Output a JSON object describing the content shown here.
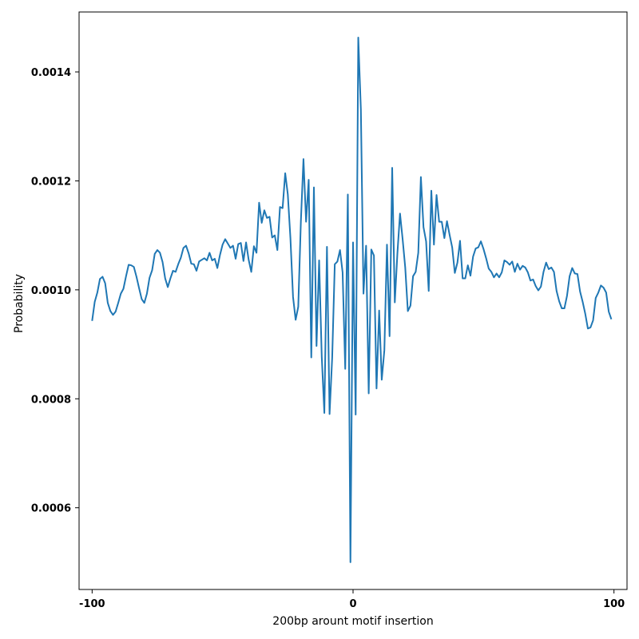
{
  "chart_data": {
    "type": "line",
    "title": "",
    "xlabel": "200bp arount motif insertion",
    "ylabel": "Probability",
    "xlim": [
      -105,
      105
    ],
    "ylim": [
      0.00045,
      0.00151
    ],
    "xticks": [
      -100,
      0,
      100
    ],
    "xtick_labels": [
      "-100",
      "0",
      "100"
    ],
    "yticks": [
      0.0006,
      0.0008,
      0.001,
      0.0012,
      0.0014
    ],
    "ytick_labels": [
      "0.0006",
      "0.0008",
      "0.0010",
      "0.0012",
      "0.0014"
    ],
    "grid": false,
    "legend": false,
    "color": "#1f77b4",
    "series": [
      {
        "x": [
          -100,
          -99,
          -98,
          -97,
          -96,
          -95,
          -94,
          -93,
          -92,
          -91,
          -90,
          -89,
          -88,
          -87,
          -86,
          -85,
          -84,
          -83,
          -82,
          -81,
          -80,
          -79,
          -78,
          -77,
          -76,
          -75,
          -74,
          -73,
          -72,
          -71,
          -70,
          -69,
          -68,
          -67,
          -66,
          -65,
          -64,
          -63,
          -62,
          -61,
          -60,
          -59,
          -58,
          -57,
          -56,
          -55,
          -54,
          -53,
          -52,
          -51,
          -50,
          -49,
          -48,
          -47,
          -46,
          -45,
          -44,
          -43,
          -42,
          -41,
          -40,
          -39,
          -38,
          -37,
          -36,
          -35,
          -34,
          -33,
          -32,
          -31,
          -30,
          -29,
          -28,
          -27,
          -26,
          -25,
          -24,
          -23,
          -22,
          -21,
          -20,
          -19,
          -18,
          -17,
          -16,
          -15,
          -14,
          -13,
          -12,
          -11,
          -10,
          -9,
          -8,
          -7,
          -6,
          -5,
          -4,
          -3,
          -2,
          -1,
          0,
          1,
          2,
          3,
          4,
          5,
          6,
          7,
          8,
          9,
          10,
          11,
          12,
          13,
          14,
          15,
          16,
          17,
          18,
          19,
          20,
          21,
          22,
          23,
          24,
          25,
          26,
          27,
          28,
          29,
          30,
          31,
          32,
          33,
          34,
          35,
          36,
          37,
          38,
          39,
          40,
          41,
          42,
          43,
          44,
          45,
          46,
          47,
          48,
          49,
          50,
          51,
          52,
          53,
          54,
          55,
          56,
          57,
          58,
          59,
          60,
          61,
          62,
          63,
          64,
          65,
          66,
          67,
          68,
          69,
          70,
          71,
          72,
          73,
          74,
          75,
          76,
          77,
          78,
          79,
          80,
          81,
          82,
          83,
          84,
          85,
          86,
          87,
          88,
          89,
          90,
          91,
          92,
          93,
          94,
          95,
          96,
          97,
          98,
          99
        ],
        "y": [
          0.000943,
          0.000978,
          0.000995,
          0.00102,
          0.001024,
          0.001012,
          0.000976,
          0.000961,
          0.000954,
          0.00096,
          0.000976,
          0.000993,
          0.001002,
          0.001025,
          0.001046,
          0.001045,
          0.001042,
          0.001024,
          0.001003,
          0.000983,
          0.000976,
          0.000993,
          0.001022,
          0.001036,
          0.001066,
          0.001073,
          0.001068,
          0.001051,
          0.001021,
          0.001005,
          0.001021,
          0.001035,
          0.001033,
          0.001047,
          0.001059,
          0.001077,
          0.001081,
          0.001067,
          0.001048,
          0.001047,
          0.001035,
          0.001052,
          0.001055,
          0.001058,
          0.001054,
          0.001068,
          0.001054,
          0.001057,
          0.00104,
          0.001064,
          0.001083,
          0.001093,
          0.001085,
          0.001077,
          0.001081,
          0.001057,
          0.001084,
          0.001086,
          0.001053,
          0.001087,
          0.001055,
          0.001033,
          0.00108,
          0.001068,
          0.00116,
          0.001123,
          0.001146,
          0.001132,
          0.001134,
          0.001096,
          0.0011,
          0.001073,
          0.001152,
          0.00115,
          0.001214,
          0.001175,
          0.001095,
          0.000987,
          0.000945,
          0.000969,
          0.001125,
          0.00124,
          0.001125,
          0.001202,
          0.000876,
          0.001188,
          0.000897,
          0.001054,
          0.000878,
          0.000774,
          0.001079,
          0.000772,
          0.000875,
          0.001047,
          0.001052,
          0.001073,
          0.001032,
          0.000855,
          0.001175,
          0.0005,
          0.001087,
          0.000771,
          0.001463,
          0.001331,
          0.000993,
          0.001081,
          0.00081,
          0.001074,
          0.001063,
          0.000819,
          0.000962,
          0.000835,
          0.000889,
          0.001083,
          0.000915,
          0.001224,
          0.000977,
          0.001067,
          0.00114,
          0.001093,
          0.001041,
          0.000961,
          0.000971,
          0.001025,
          0.001033,
          0.001068,
          0.001207,
          0.001115,
          0.001089,
          0.000998,
          0.001182,
          0.001083,
          0.001174,
          0.001125,
          0.001125,
          0.001095,
          0.001126,
          0.001101,
          0.001078,
          0.001031,
          0.00105,
          0.00109,
          0.001021,
          0.001021,
          0.001045,
          0.001026,
          0.001061,
          0.001076,
          0.001078,
          0.001089,
          0.001075,
          0.001058,
          0.001039,
          0.001033,
          0.001023,
          0.00103,
          0.001023,
          0.001032,
          0.001054,
          0.001051,
          0.001046,
          0.001052,
          0.001033,
          0.001048,
          0.001037,
          0.001044,
          0.001041,
          0.001032,
          0.001017,
          0.001019,
          0.001007,
          0.000999,
          0.001006,
          0.001033,
          0.00105,
          0.001038,
          0.001041,
          0.001033,
          0.000998,
          0.000979,
          0.000966,
          0.000966,
          0.000989,
          0.001025,
          0.00104,
          0.00103,
          0.001029,
          0.000997,
          0.000978,
          0.000956,
          0.000929,
          0.000931,
          0.000944,
          0.000985,
          0.000995,
          0.001008,
          0.001004,
          0.000995,
          0.00096,
          0.000946
        ]
      }
    ]
  }
}
